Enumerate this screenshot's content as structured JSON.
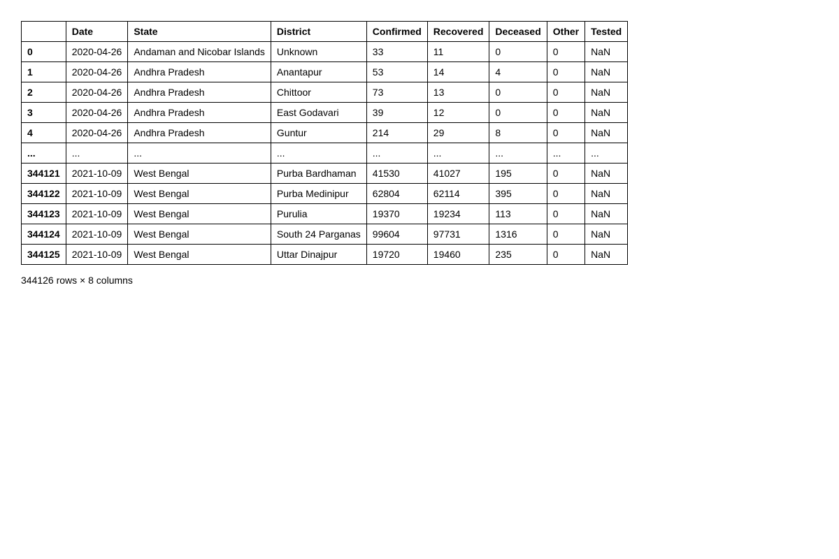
{
  "table": {
    "columns": [
      "",
      "Date",
      "State",
      "District",
      "Confirmed",
      "Recovered",
      "Deceased",
      "Other",
      "Tested"
    ],
    "rows": [
      {
        "index": "0",
        "date": "2020-04-26",
        "state": "Andaman and Nicobar Islands",
        "district": "Unknown",
        "confirmed": "33",
        "recovered": "11",
        "deceased": "0",
        "other": "0",
        "tested": "NaN"
      },
      {
        "index": "1",
        "date": "2020-04-26",
        "state": "Andhra Pradesh",
        "district": "Anantapur",
        "confirmed": "53",
        "recovered": "14",
        "deceased": "4",
        "other": "0",
        "tested": "NaN"
      },
      {
        "index": "2",
        "date": "2020-04-26",
        "state": "Andhra Pradesh",
        "district": "Chittoor",
        "confirmed": "73",
        "recovered": "13",
        "deceased": "0",
        "other": "0",
        "tested": "NaN"
      },
      {
        "index": "3",
        "date": "2020-04-26",
        "state": "Andhra Pradesh",
        "district": "East Godavari",
        "confirmed": "39",
        "recovered": "12",
        "deceased": "0",
        "other": "0",
        "tested": "NaN"
      },
      {
        "index": "4",
        "date": "2020-04-26",
        "state": "Andhra Pradesh",
        "district": "Guntur",
        "confirmed": "214",
        "recovered": "29",
        "deceased": "8",
        "other": "0",
        "tested": "NaN"
      },
      {
        "index": "...",
        "date": "...",
        "state": "...",
        "district": "...",
        "confirmed": "...",
        "recovered": "...",
        "deceased": "...",
        "other": "...",
        "tested": "..."
      },
      {
        "index": "344121",
        "date": "2021-10-09",
        "state": "West Bengal",
        "district": "Purba Bardhaman",
        "confirmed": "41530",
        "recovered": "41027",
        "deceased": "195",
        "other": "0",
        "tested": "NaN"
      },
      {
        "index": "344122",
        "date": "2021-10-09",
        "state": "West Bengal",
        "district": "Purba Medinipur",
        "confirmed": "62804",
        "recovered": "62114",
        "deceased": "395",
        "other": "0",
        "tested": "NaN"
      },
      {
        "index": "344123",
        "date": "2021-10-09",
        "state": "West Bengal",
        "district": "Purulia",
        "confirmed": "19370",
        "recovered": "19234",
        "deceased": "113",
        "other": "0",
        "tested": "NaN"
      },
      {
        "index": "344124",
        "date": "2021-10-09",
        "state": "West Bengal",
        "district": "South 24 Parganas",
        "confirmed": "99604",
        "recovered": "97731",
        "deceased": "1316",
        "other": "0",
        "tested": "NaN"
      },
      {
        "index": "344125",
        "date": "2021-10-09",
        "state": "West Bengal",
        "district": "Uttar Dinajpur",
        "confirmed": "19720",
        "recovered": "19460",
        "deceased": "235",
        "other": "0",
        "tested": "NaN"
      }
    ],
    "summary": "344126 rows × 8 columns"
  }
}
